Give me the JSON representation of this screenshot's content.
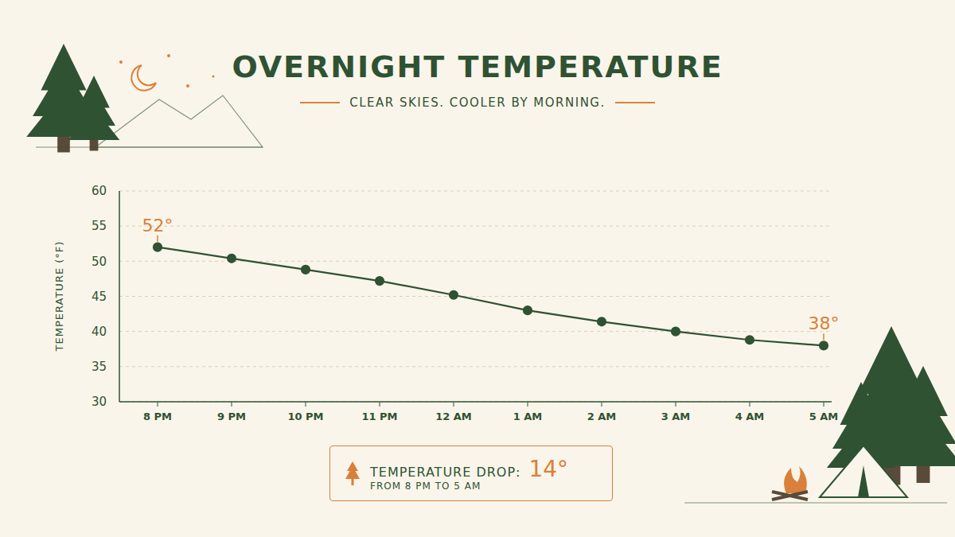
{
  "chart_data": {
    "type": "line",
    "title": "OVERNIGHT TEMPERATURE",
    "subtitle": "CLEAR SKIES. COOLER BY MORNING.",
    "y_label": "TEMPERATURE (°F)",
    "categories": [
      "8 PM",
      "9 PM",
      "10 PM",
      "11 PM",
      "12 AM",
      "1 AM",
      "2 AM",
      "3 AM",
      "4 AM",
      "5 AM"
    ],
    "values": [
      52,
      50.4,
      48.8,
      47.2,
      45.2,
      43,
      41.4,
      40,
      38.8,
      38
    ],
    "value_labels": [
      "52°",
      null,
      null,
      null,
      null,
      null,
      null,
      null,
      null,
      "38°"
    ],
    "data_labels": true,
    "color": "#2f5233",
    "marker": "circle",
    "ylim": [
      30,
      60
    ],
    "yticks": [
      30,
      35,
      40,
      45,
      50,
      55,
      60
    ],
    "grid": true,
    "annotation": {
      "label": "TEMPERATURE DROP:",
      "value": "14°",
      "note": "FROM 8 PM TO 5 AM"
    }
  }
}
